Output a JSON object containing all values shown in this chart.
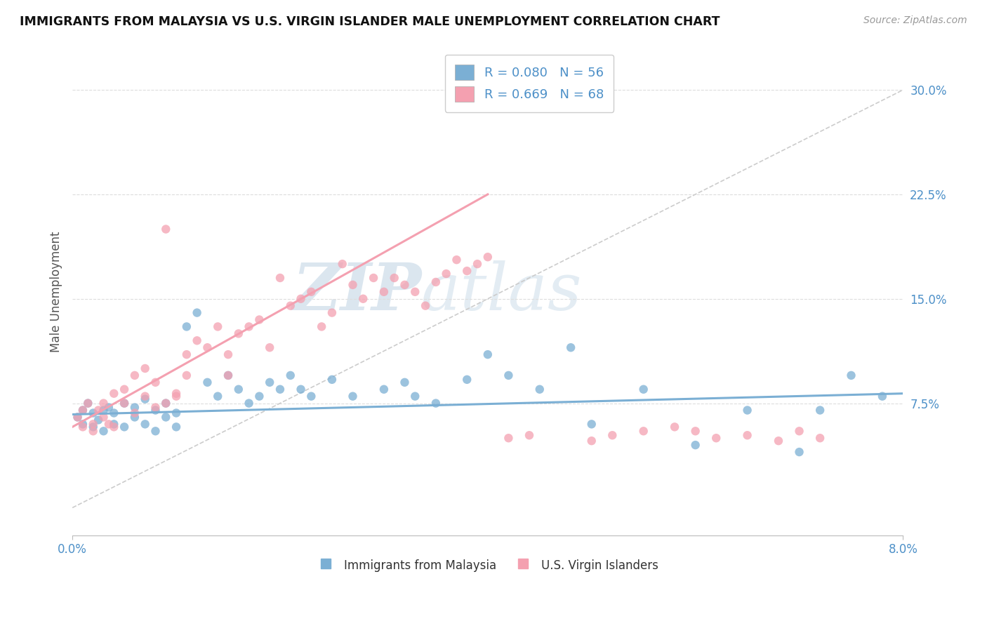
{
  "title": "IMMIGRANTS FROM MALAYSIA VS U.S. VIRGIN ISLANDER MALE UNEMPLOYMENT CORRELATION CHART",
  "source": "Source: ZipAtlas.com",
  "xlim": [
    0.0,
    0.08
  ],
  "ylim": [
    -0.02,
    0.33
  ],
  "ylabel_ticks": [
    0.075,
    0.15,
    0.225,
    0.3
  ],
  "ylabel_labels": [
    "7.5%",
    "15.0%",
    "22.5%",
    "30.0%"
  ],
  "xtick_positions": [
    0.0,
    0.08
  ],
  "xtick_labels": [
    "0.0%",
    "8.0%"
  ],
  "xlabel_bottom": [
    "Immigrants from Malaysia",
    "U.S. Virgin Islanders"
  ],
  "legend_r_blue": "R = 0.080",
  "legend_n_blue": "N = 56",
  "legend_r_pink": "R = 0.669",
  "legend_n_pink": "N = 68",
  "color_blue": "#7BAFD4",
  "color_pink": "#F4A0B0",
  "color_text_blue": "#4D90C8",
  "watermark_zip": "ZIP",
  "watermark_atlas": "atlas",
  "blue_line_x": [
    0.0,
    0.08
  ],
  "blue_line_y": [
    0.067,
    0.082
  ],
  "pink_line_x": [
    0.0,
    0.04
  ],
  "pink_line_y": [
    0.058,
    0.225
  ],
  "diag_line_x": [
    0.0,
    0.08
  ],
  "diag_line_y": [
    0.0,
    0.3
  ],
  "blue_x": [
    0.0005,
    0.001,
    0.001,
    0.0015,
    0.002,
    0.002,
    0.0025,
    0.003,
    0.003,
    0.0035,
    0.004,
    0.004,
    0.005,
    0.005,
    0.006,
    0.006,
    0.007,
    0.007,
    0.008,
    0.008,
    0.009,
    0.009,
    0.01,
    0.01,
    0.011,
    0.012,
    0.013,
    0.014,
    0.015,
    0.016,
    0.017,
    0.018,
    0.019,
    0.02,
    0.021,
    0.022,
    0.023,
    0.025,
    0.027,
    0.03,
    0.032,
    0.033,
    0.035,
    0.038,
    0.04,
    0.042,
    0.045,
    0.048,
    0.05,
    0.055,
    0.06,
    0.065,
    0.07,
    0.072,
    0.075,
    0.078
  ],
  "blue_y": [
    0.065,
    0.07,
    0.06,
    0.075,
    0.068,
    0.058,
    0.063,
    0.07,
    0.055,
    0.072,
    0.068,
    0.06,
    0.075,
    0.058,
    0.072,
    0.065,
    0.078,
    0.06,
    0.07,
    0.055,
    0.065,
    0.075,
    0.068,
    0.058,
    0.13,
    0.14,
    0.09,
    0.08,
    0.095,
    0.085,
    0.075,
    0.08,
    0.09,
    0.085,
    0.095,
    0.085,
    0.08,
    0.092,
    0.08,
    0.085,
    0.09,
    0.08,
    0.075,
    0.092,
    0.11,
    0.095,
    0.085,
    0.115,
    0.06,
    0.085,
    0.045,
    0.07,
    0.04,
    0.07,
    0.095,
    0.08
  ],
  "pink_x": [
    0.0005,
    0.001,
    0.001,
    0.0015,
    0.002,
    0.002,
    0.0025,
    0.003,
    0.003,
    0.0035,
    0.004,
    0.004,
    0.005,
    0.005,
    0.006,
    0.006,
    0.007,
    0.007,
    0.008,
    0.008,
    0.009,
    0.009,
    0.01,
    0.01,
    0.011,
    0.011,
    0.012,
    0.013,
    0.014,
    0.015,
    0.015,
    0.016,
    0.017,
    0.018,
    0.019,
    0.02,
    0.021,
    0.022,
    0.023,
    0.024,
    0.025,
    0.026,
    0.027,
    0.028,
    0.029,
    0.03,
    0.031,
    0.032,
    0.033,
    0.034,
    0.035,
    0.036,
    0.037,
    0.038,
    0.039,
    0.04,
    0.042,
    0.044,
    0.05,
    0.052,
    0.055,
    0.058,
    0.06,
    0.062,
    0.065,
    0.068,
    0.07,
    0.072
  ],
  "pink_y": [
    0.065,
    0.07,
    0.058,
    0.075,
    0.06,
    0.055,
    0.07,
    0.065,
    0.075,
    0.06,
    0.082,
    0.058,
    0.075,
    0.085,
    0.095,
    0.068,
    0.1,
    0.08,
    0.09,
    0.072,
    0.2,
    0.075,
    0.082,
    0.08,
    0.11,
    0.095,
    0.12,
    0.115,
    0.13,
    0.11,
    0.095,
    0.125,
    0.13,
    0.135,
    0.115,
    0.165,
    0.145,
    0.15,
    0.155,
    0.13,
    0.14,
    0.175,
    0.16,
    0.15,
    0.165,
    0.155,
    0.165,
    0.16,
    0.155,
    0.145,
    0.162,
    0.168,
    0.178,
    0.17,
    0.175,
    0.18,
    0.05,
    0.052,
    0.048,
    0.052,
    0.055,
    0.058,
    0.055,
    0.05,
    0.052,
    0.048,
    0.055,
    0.05
  ]
}
